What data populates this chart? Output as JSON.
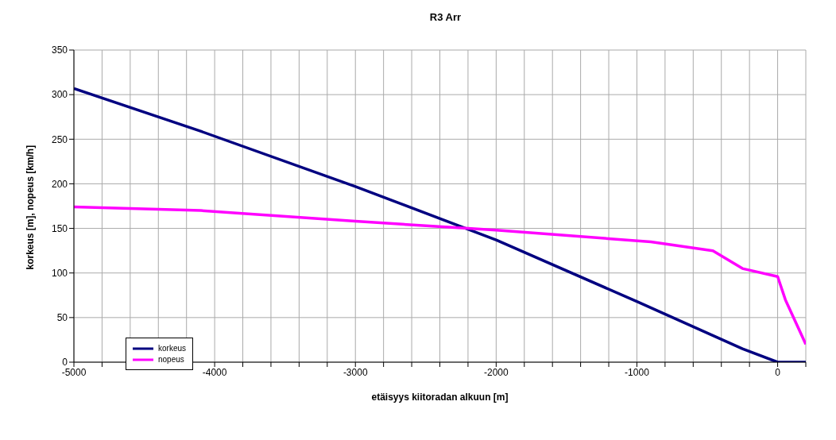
{
  "chart_data": {
    "type": "line",
    "title": "R3 Arr",
    "xlabel": "etäisyys kiitoradan alkuun [m]",
    "ylabel": "korkeus [m], nopeus [km/h]",
    "series": [
      {
        "name": "korkeus",
        "color": "#000080",
        "x": [
          -5000,
          -4100,
          -3000,
          -2000,
          -1000,
          -250,
          0,
          200
        ],
        "values": [
          307,
          259,
          197,
          137,
          68,
          15,
          0,
          0
        ]
      },
      {
        "name": "nopeus",
        "color": "#ff00ff",
        "x": [
          -5000,
          -4100,
          -3000,
          -2200,
          -2000,
          -900,
          -460,
          -250,
          0,
          55,
          200
        ],
        "values": [
          174,
          170,
          158,
          150,
          148,
          135,
          125,
          105,
          96,
          70,
          20
        ]
      }
    ],
    "xlim": [
      -5000,
      200
    ],
    "xticks": [
      -5000,
      {
        "value": -4800,
        "label": null
      },
      {
        "value": -4600,
        "label": null
      },
      {
        "value": -4400,
        "label": null
      },
      {
        "value": -4200,
        "label": null
      },
      -4000,
      {
        "value": -3800,
        "label": null
      },
      {
        "value": -3600,
        "label": null
      },
      {
        "value": -3400,
        "label": null
      },
      {
        "value": -3200,
        "label": null
      },
      -3000,
      {
        "value": -2800,
        "label": null
      },
      {
        "value": -2600,
        "label": null
      },
      {
        "value": -2400,
        "label": null
      },
      {
        "value": -2200,
        "label": null
      },
      -2000,
      {
        "value": -1800,
        "label": null
      },
      {
        "value": -1600,
        "label": null
      },
      {
        "value": -1400,
        "label": null
      },
      {
        "value": -1200,
        "label": null
      },
      -1000,
      {
        "value": -800,
        "label": null
      },
      {
        "value": -600,
        "label": null
      },
      {
        "value": -400,
        "label": null
      },
      {
        "value": -200,
        "label": null
      },
      0,
      {
        "value": 200,
        "label": null
      }
    ],
    "ylim": [
      0,
      350
    ],
    "yticks": [
      0,
      50,
      100,
      150,
      200,
      250,
      300,
      350
    ],
    "grid": true,
    "legend": "bottom left",
    "marker": "none",
    "line_style": "solid"
  }
}
